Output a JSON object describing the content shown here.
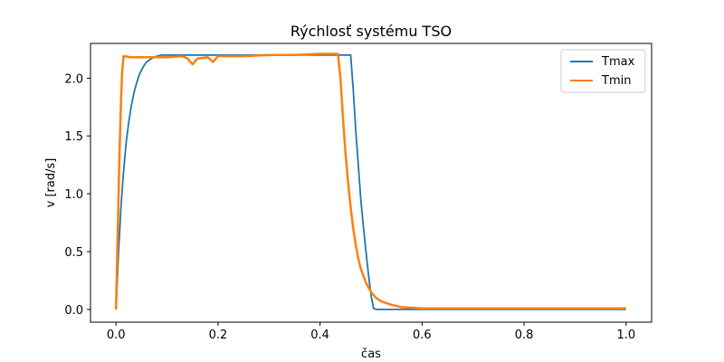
{
  "chart_data": {
    "type": "line",
    "title": "Rýchlosť systému TSO",
    "xlabel": "čas",
    "ylabel": "v [rad/s]",
    "xlim": [
      -0.05,
      1.05
    ],
    "ylim": [
      -0.11,
      2.3
    ],
    "xticks": [
      0.0,
      0.2,
      0.4,
      0.6,
      0.8,
      1.0
    ],
    "xtick_labels": [
      "0.0",
      "0.2",
      "0.4",
      "0.6",
      "0.8",
      "1.0"
    ],
    "yticks": [
      0.0,
      0.5,
      1.0,
      1.5,
      2.0
    ],
    "ytick_labels": [
      "0.0",
      "0.5",
      "1.0",
      "1.5",
      "2.0"
    ],
    "grid": false,
    "legend_position": "top-right",
    "series": [
      {
        "name": "Tmax",
        "color": "#1f77b4",
        "points": [
          [
            0.0,
            0.0
          ],
          [
            0.005,
            0.5
          ],
          [
            0.01,
            0.9
          ],
          [
            0.015,
            1.2
          ],
          [
            0.02,
            1.45
          ],
          [
            0.025,
            1.62
          ],
          [
            0.03,
            1.76
          ],
          [
            0.035,
            1.87
          ],
          [
            0.04,
            1.95
          ],
          [
            0.045,
            2.02
          ],
          [
            0.05,
            2.07
          ],
          [
            0.055,
            2.11
          ],
          [
            0.06,
            2.14
          ],
          [
            0.07,
            2.17
          ],
          [
            0.08,
            2.19
          ],
          [
            0.09,
            2.2
          ],
          [
            0.1,
            2.2
          ],
          [
            0.2,
            2.2
          ],
          [
            0.3,
            2.2
          ],
          [
            0.4,
            2.2
          ],
          [
            0.45,
            2.2
          ],
          [
            0.46,
            2.2
          ],
          [
            0.465,
            1.9
          ],
          [
            0.47,
            1.55
          ],
          [
            0.475,
            1.25
          ],
          [
            0.48,
            0.95
          ],
          [
            0.485,
            0.72
          ],
          [
            0.49,
            0.5
          ],
          [
            0.495,
            0.3
          ],
          [
            0.5,
            0.12
          ],
          [
            0.505,
            0.01
          ],
          [
            0.51,
            0.0
          ],
          [
            0.6,
            0.0
          ],
          [
            0.7,
            0.0
          ],
          [
            0.8,
            0.0
          ],
          [
            0.9,
            0.0
          ],
          [
            1.0,
            0.0
          ]
        ]
      },
      {
        "name": "Tmin",
        "color": "#ff7f0e",
        "points": [
          [
            0.0,
            0.0
          ],
          [
            0.003,
            0.6
          ],
          [
            0.006,
            1.2
          ],
          [
            0.009,
            1.7
          ],
          [
            0.012,
            2.05
          ],
          [
            0.015,
            2.19
          ],
          [
            0.03,
            2.18
          ],
          [
            0.06,
            2.18
          ],
          [
            0.1,
            2.18
          ],
          [
            0.13,
            2.19
          ],
          [
            0.14,
            2.17
          ],
          [
            0.15,
            2.12
          ],
          [
            0.16,
            2.17
          ],
          [
            0.18,
            2.18
          ],
          [
            0.19,
            2.14
          ],
          [
            0.2,
            2.19
          ],
          [
            0.25,
            2.19
          ],
          [
            0.3,
            2.2
          ],
          [
            0.35,
            2.2
          ],
          [
            0.4,
            2.21
          ],
          [
            0.435,
            2.21
          ],
          [
            0.44,
            2.0
          ],
          [
            0.445,
            1.65
          ],
          [
            0.45,
            1.35
          ],
          [
            0.455,
            1.1
          ],
          [
            0.46,
            0.88
          ],
          [
            0.465,
            0.7
          ],
          [
            0.47,
            0.56
          ],
          [
            0.475,
            0.44
          ],
          [
            0.48,
            0.35
          ],
          [
            0.49,
            0.23
          ],
          [
            0.5,
            0.15
          ],
          [
            0.51,
            0.1
          ],
          [
            0.52,
            0.07
          ],
          [
            0.54,
            0.04
          ],
          [
            0.56,
            0.02
          ],
          [
            0.6,
            0.01
          ],
          [
            0.7,
            0.01
          ],
          [
            0.8,
            0.01
          ],
          [
            0.9,
            0.01
          ],
          [
            1.0,
            0.01
          ]
        ]
      }
    ]
  }
}
